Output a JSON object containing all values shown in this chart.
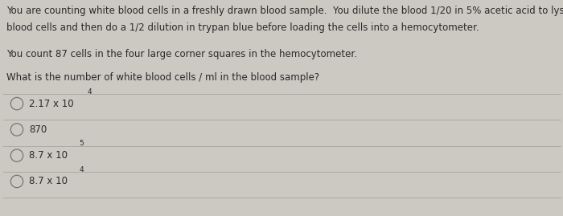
{
  "background_color": "#ccc8c2",
  "paragraph1": "You are counting white blood cells in a freshly drawn blood sample.  You dilute the blood 1/20 in 5% acetic acid to lyse the red",
  "paragraph1b": "blood cells and then do a 1/2 dilution in trypan blue before loading the cells into a hemocytometer.",
  "paragraph2": "You count 87 cells in the four large corner squares in the hemocytometer.",
  "paragraph3": "What is the number of white blood cells / ml in the blood sample?",
  "options": [
    {
      "label": "2.17 x 10",
      "superscript": "4"
    },
    {
      "label": "870",
      "superscript": ""
    },
    {
      "label": "8.7 x 10",
      "superscript": "5"
    },
    {
      "label": "8.7 x 10",
      "superscript": "4"
    }
  ],
  "text_color": "#2a2a2a",
  "line_color": "#aaa49e",
  "font_size_body": 8.5,
  "font_size_options": 8.5,
  "font_size_super": 6.5
}
